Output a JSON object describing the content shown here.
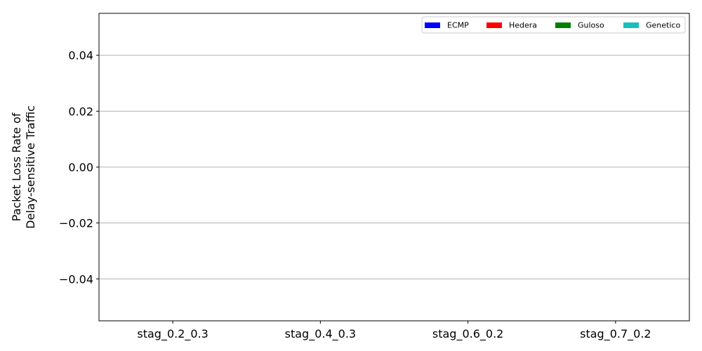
{
  "chart_data": {
    "type": "bar",
    "title": "",
    "xlabel": "",
    "ylabel_lines": [
      "Packet Loss Rate of",
      "Delay-sensitive Traffic"
    ],
    "categories": [
      "stag_0.2_0.3",
      "stag_0.4_0.3",
      "stag_0.6_0.2",
      "stag_0.7_0.2"
    ],
    "ylim": [
      -0.055,
      0.055
    ],
    "yticks": [
      -0.04,
      -0.02,
      0.0,
      0.02,
      0.04
    ],
    "ytick_labels": [
      "−0.04",
      "−0.02",
      "0.00",
      "0.02",
      "0.04"
    ],
    "grid": "y",
    "legend_position": "top-right",
    "series": [
      {
        "name": "ECMP",
        "color": "#0000ff",
        "values": [
          0,
          0,
          0,
          0
        ]
      },
      {
        "name": "Hedera",
        "color": "#ff0000",
        "values": [
          0,
          0,
          0,
          0
        ]
      },
      {
        "name": "Guloso",
        "color": "#008000",
        "values": [
          0,
          0,
          0,
          0
        ]
      },
      {
        "name": "Genetico",
        "color": "#17bfbf",
        "values": [
          0,
          0,
          0,
          0
        ]
      }
    ]
  }
}
